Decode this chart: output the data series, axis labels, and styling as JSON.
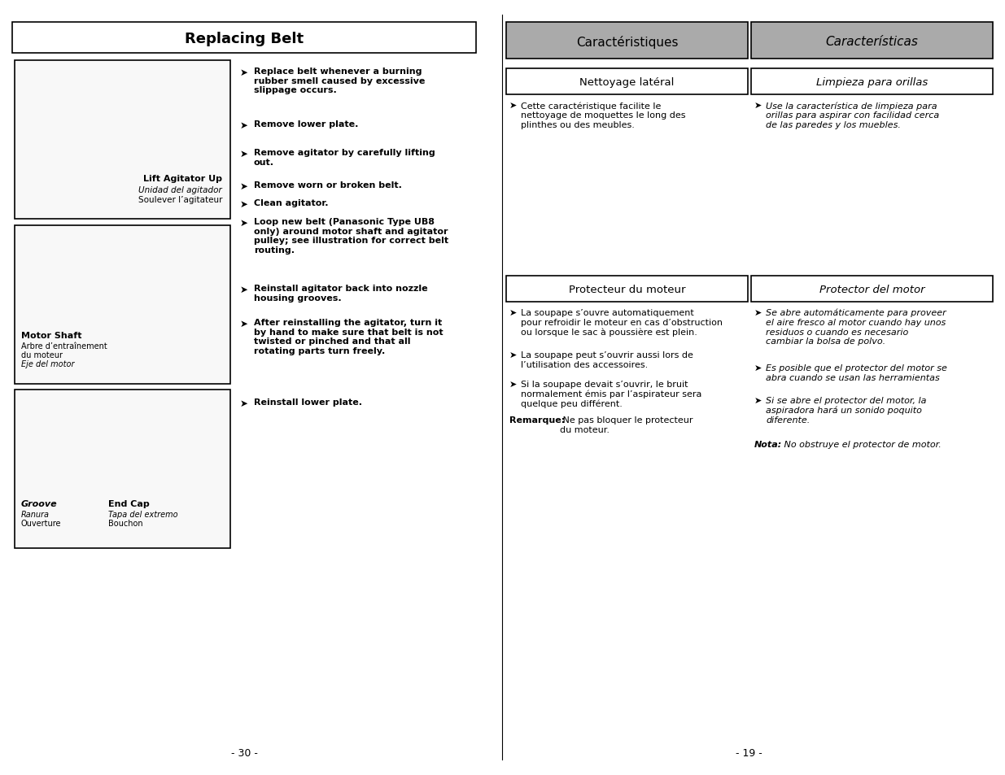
{
  "bg_color": "#ffffff",
  "title": "Replacing Belt",
  "header_left": "Caractéristiques",
  "header_right": "Características",
  "header_bg": "#aaaaaa",
  "box1_left_label": "Nettoyage latéral",
  "box1_right_label": "Limpieza para orillas",
  "text1_left": "Cette caractéristique facilite le\nnettoyage de moquettes le long des\nplinthes ou des meubles.",
  "text1_right": "Use la característica de limpieza para\norillas para aspirar con facilidad cerca\nde las paredes y los muebles.",
  "box2_left_label": "Protecteur du moteur",
  "box2_right_label": "Protector del motor",
  "text2_left_bullets": [
    "La soupape s’ouvre automatiquement\npour refroidir le moteur en cas d’obstruction\nou lorsque le sac à poussière est plein.",
    "La soupape peut s’ouvrir aussi lors de\nl’utilisation des accessoires.",
    "Si la soupape devait s’ouvrir, le bruit\nnormalement émis par l’aspirateur sera\nquelque peu différent."
  ],
  "text2_left_note_bold": "Remarque:",
  "text2_left_note_rest": " Ne pas bloquer le protecteur\ndu moteur.",
  "text2_right_bullets": [
    "Se abre automáticamente para proveer\nel aire fresco al motor cuando hay unos\nresiduos o cuando es necesario\ncambiar la bolsa de polvo.",
    "Es posible que el protector del motor se\nabra cuando se usan las herramientas",
    "Si se abre el protector del motor, la\naspiradora hará un sonido poquito\ndiferente."
  ],
  "text2_right_note_bold": "Nota:",
  "text2_right_note_italic": " No obstruye el protector de motor.",
  "instructions": [
    "Replace belt whenever a burning\nrubber smell caused by excessive\nslippage occurs.",
    "Remove lower plate.",
    "Remove agitator by carefully lifting\nout.",
    "Remove worn or broken belt.",
    "Clean agitator.",
    "Loop new belt (Panasonic Type UB8\nonly) around motor shaft and agitator\npulley; see illustration for correct belt\nrouting.",
    "Reinstall agitator back into nozzle\nhousing grooves.",
    "After reinstalling the agitator, turn it\nby hand to make sure that belt is not\ntwisted or pinched and that all\nrotating parts turn freely.",
    "Reinstall lower plate."
  ],
  "img1_labels": {
    "bold": "Lift Agitator Up",
    "italic": "Unidad del agitador",
    "normal": "Soulever l’agitateur"
  },
  "img2_labels": {
    "bold": "Motor Shaft",
    "normal1": "Arbre d’entraînement",
    "normal2": "du moteur",
    "italic": "Eje del motor"
  },
  "img3_labels_left": {
    "bold_italic": "Groove",
    "italic": "Ranura",
    "normal": "Ouverture"
  },
  "img3_labels_right": {
    "bold": "End Cap",
    "italic": "Tapa del extremo",
    "normal": "Bouchon"
  },
  "page_left": "- 30 -",
  "page_right": "- 19 -"
}
